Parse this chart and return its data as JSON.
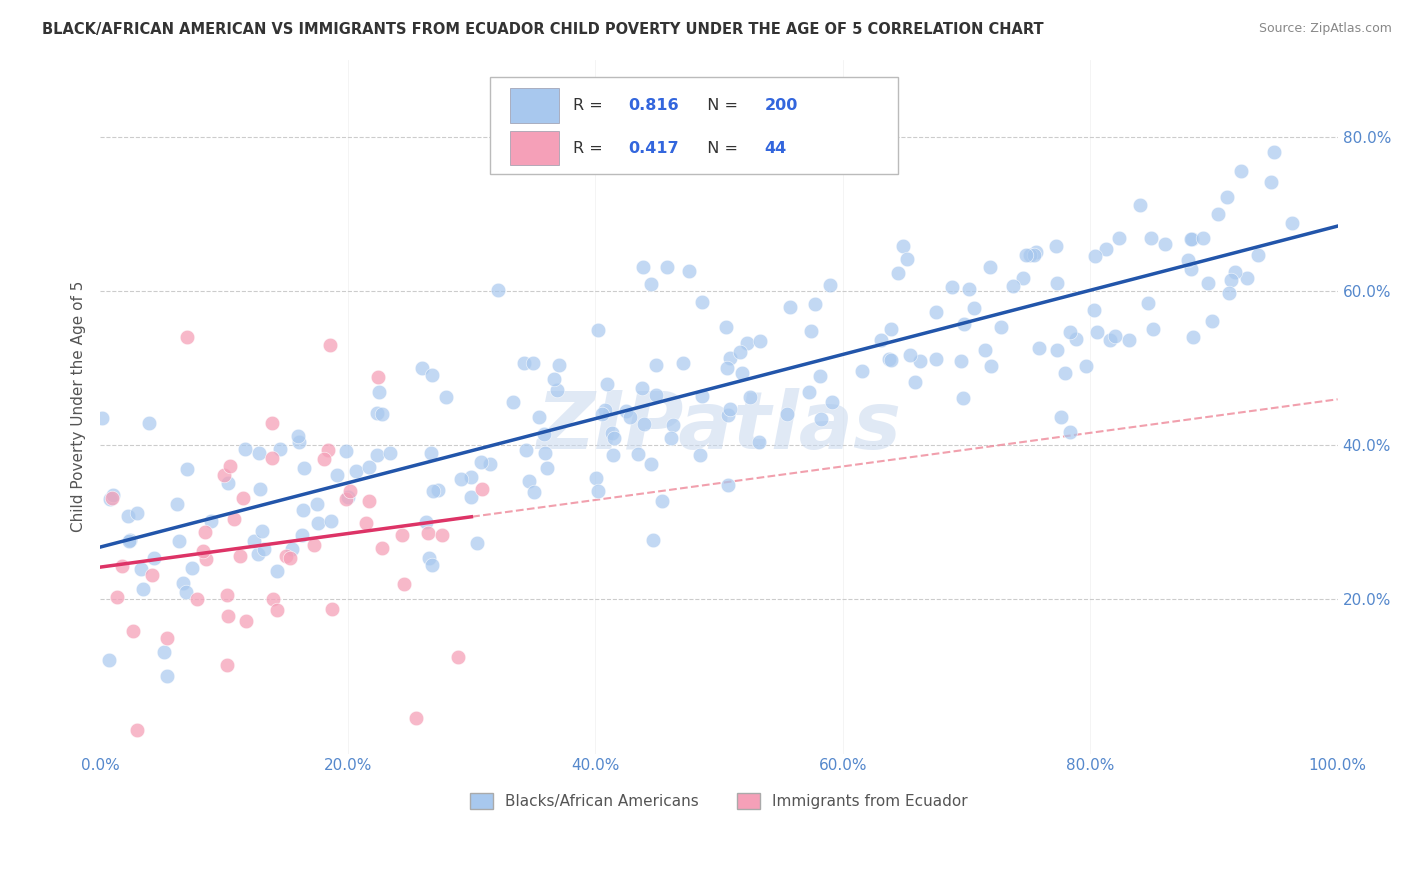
{
  "title": "BLACK/AFRICAN AMERICAN VS IMMIGRANTS FROM ECUADOR CHILD POVERTY UNDER THE AGE OF 5 CORRELATION CHART",
  "source": "Source: ZipAtlas.com",
  "ylabel": "Child Poverty Under the Age of 5",
  "R_blue": 0.816,
  "N_blue": 200,
  "R_pink": 0.417,
  "N_pink": 44,
  "blue_scatter_color": "#A8C8EE",
  "pink_scatter_color": "#F5A0B8",
  "blue_line_color": "#2255AA",
  "pink_line_color": "#DD3366",
  "pink_dash_color": "#EE8899",
  "watermark_text": "ZIPatlas",
  "watermark_color": "#C8D8EE",
  "legend_labels": [
    "Blacks/African Americans",
    "Immigrants from Ecuador"
  ],
  "xlim": [
    0.0,
    1.0
  ],
  "ylim": [
    -0.05,
    0.9
  ],
  "plot_ylim": [
    0.0,
    0.9
  ],
  "xticks": [
    0.0,
    0.2,
    0.4,
    0.6,
    0.8,
    1.0
  ],
  "xtick_labels": [
    "0.0%",
    "20.0%",
    "40.0%",
    "60.0%",
    "80.0%",
    "100.0%"
  ],
  "ytick_positions": [
    0.2,
    0.4,
    0.6,
    0.8
  ],
  "ytick_labels": [
    "20.0%",
    "40.0%",
    "60.0%",
    "80.0%"
  ],
  "background_color": "#FFFFFF",
  "grid_color": "#CCCCCC",
  "title_color": "#333333",
  "axis_label_color": "#555555",
  "tick_color": "#5588CC"
}
